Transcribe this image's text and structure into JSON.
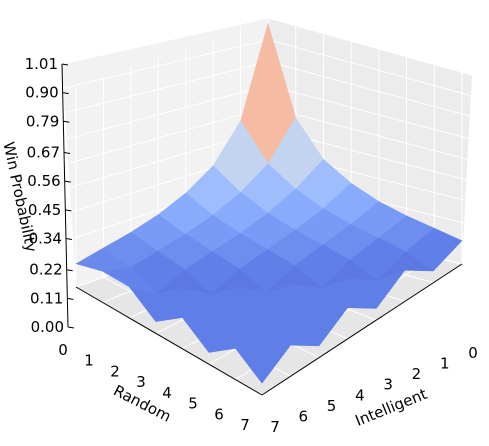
{
  "chart_data": {
    "type": "surface",
    "title": "",
    "xlabel": "Random",
    "ylabel": "Intelligent",
    "zlabel": "Win Probability",
    "random_ticks": [
      "0",
      "1",
      "2",
      "3",
      "4",
      "5",
      "6",
      "7"
    ],
    "intelligent_ticks": [
      "0",
      "1",
      "2",
      "3",
      "4",
      "5",
      "6",
      "7"
    ],
    "z_ticks": [
      "0.00",
      "0.11",
      "0.22",
      "0.34",
      "0.45",
      "0.56",
      "0.67",
      "0.79",
      "0.90",
      "1.01"
    ],
    "zlim": [
      0,
      1.01
    ],
    "colormap": "coolwarm",
    "grid": true,
    "random": [
      0,
      1,
      2,
      3,
      4,
      5,
      6,
      7
    ],
    "intelligent": [
      0,
      1,
      2,
      3,
      4,
      5,
      6,
      7
    ],
    "win_probability": [
      [
        1.0,
        0.55,
        0.37,
        0.28,
        0.22,
        0.18,
        0.15,
        0.12
      ],
      [
        0.55,
        0.37,
        0.28,
        0.22,
        0.18,
        0.15,
        0.12,
        0.06
      ],
      [
        0.37,
        0.28,
        0.22,
        0.18,
        0.15,
        0.12,
        0.06,
        0.16
      ],
      [
        0.28,
        0.22,
        0.18,
        0.15,
        0.12,
        0.06,
        0.16,
        0.06
      ],
      [
        0.22,
        0.18,
        0.15,
        0.12,
        0.06,
        0.16,
        0.06,
        0.16
      ],
      [
        0.18,
        0.15,
        0.12,
        0.06,
        0.16,
        0.06,
        0.16,
        0.06
      ],
      [
        0.15,
        0.12,
        0.06,
        0.16,
        0.06,
        0.16,
        0.06,
        0.16
      ],
      [
        0.12,
        0.16,
        0.16,
        0.06,
        0.16,
        0.06,
        0.16,
        0.06
      ]
    ]
  }
}
